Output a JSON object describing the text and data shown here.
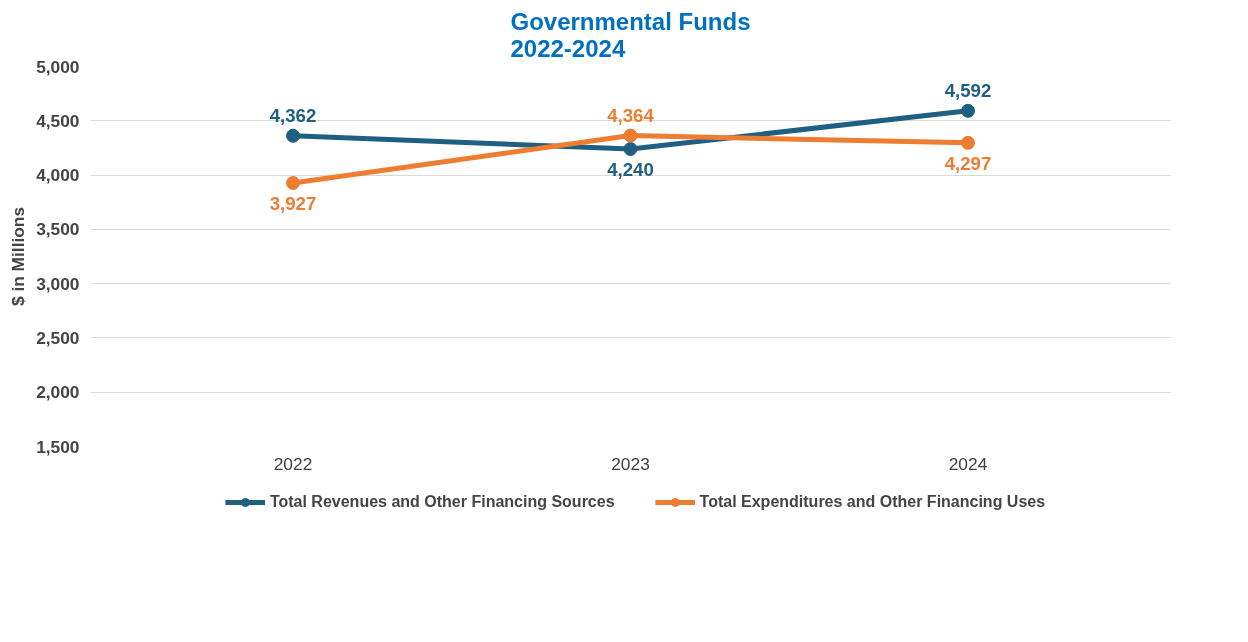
{
  "chart_data": {
    "type": "line",
    "title": "Governmental Funds\n2022-2024",
    "ylabel": "$ in Millions",
    "categories": [
      "2022",
      "2023",
      "2024"
    ],
    "series": [
      {
        "name": "Total Revenues and Other Financing Sources",
        "color": "#1f5f82",
        "values": [
          4362,
          4240,
          4592
        ],
        "value_labels": [
          "4,362",
          "4,240",
          "4,592"
        ]
      },
      {
        "name": "Total Expenditures and Other Financing Uses",
        "color": "#ed7d31",
        "values": [
          3927,
          4364,
          4297
        ],
        "value_labels": [
          "3,927",
          "4,364",
          "4,297"
        ]
      }
    ],
    "ylim": [
      1500,
      5000
    ],
    "yticks": [
      {
        "value": 1500,
        "label": "1,500"
      },
      {
        "value": 2000,
        "label": "2,000"
      },
      {
        "value": 2500,
        "label": "2,500"
      },
      {
        "value": 3000,
        "label": "3,000"
      },
      {
        "value": 3500,
        "label": "3,500"
      },
      {
        "value": 4000,
        "label": "4,000"
      },
      {
        "value": 4500,
        "label": "4,500"
      },
      {
        "value": 5000,
        "label": "5,000"
      }
    ],
    "grid": "y",
    "legend": "bottom",
    "marker": "circle",
    "line_style": "solid",
    "data_labels": true
  }
}
